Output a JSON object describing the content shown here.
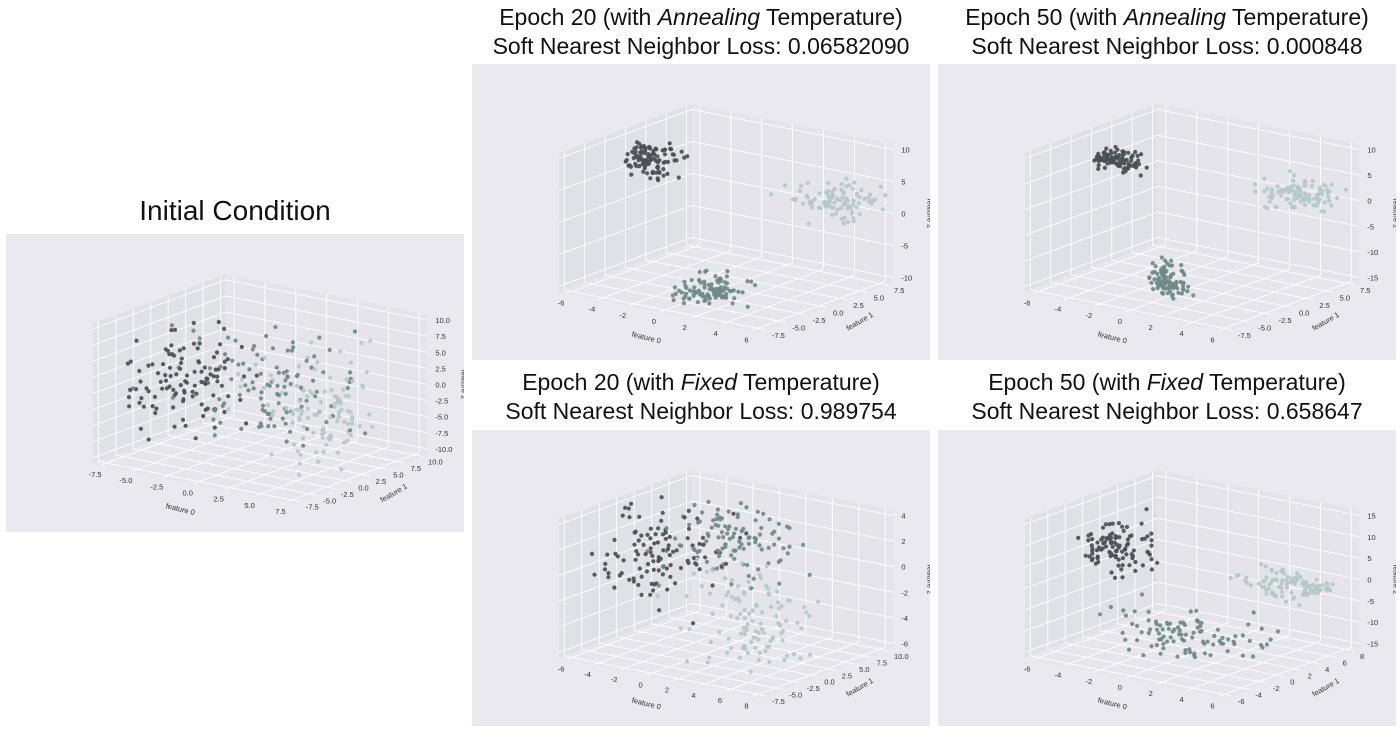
{
  "figure": {
    "initial_title": "Initial Condition",
    "ann20": {
      "title_pre": "Epoch 20 (with ",
      "title_em": "Annealing",
      "title_post": " Temperature)",
      "loss": "Soft Nearest Neighbor Loss: 0.06582090"
    },
    "ann50": {
      "title_pre": "Epoch 50 (with ",
      "title_em": "Annealing",
      "title_post": " Temperature)",
      "loss": "Soft Nearest Neighbor Loss: 0.000848"
    },
    "fix20": {
      "title_pre": "Epoch 20 (with ",
      "title_em": "Fixed",
      "title_post": " Temperature)",
      "loss": "Soft Nearest Neighbor Loss: 0.989754"
    },
    "fix50": {
      "title_pre": "Epoch 50 (with ",
      "title_em": "Fixed",
      "title_post": " Temperature)",
      "loss": "Soft Nearest Neighbor Loss: 0.658647"
    }
  },
  "colors": {
    "background": "#e9e9ef",
    "grid": "#ffffff",
    "cluster_dark": "#4a4f52",
    "cluster_mid": "#6f8a88",
    "cluster_light": "#b4c9c6"
  },
  "chart_data": [
    {
      "id": "initial",
      "type": "scatter",
      "subtype": "3d",
      "grid": true,
      "xlabel": "feature 0",
      "ylabel": "feature 1",
      "zlabel": "feature 2",
      "xticks": [
        "-7.5",
        "-5.0",
        "-2.5",
        "0.0",
        "2.5",
        "5.0",
        "7.5"
      ],
      "yticks": [
        "-7.5",
        "-5.0",
        "-2.5",
        "0.0",
        "2.5",
        "5.0",
        "7.5",
        "10.0"
      ],
      "zticks": [
        "-10.0",
        "-7.5",
        "-5.0",
        "-2.5",
        "0.0",
        "2.5",
        "5.0",
        "7.5",
        "10.0"
      ],
      "clusters": [
        {
          "center": [
            -5.5,
            0.0,
            0.0
          ],
          "spread": [
            2.3,
            3.0,
            4.0
          ],
          "n": 110
        },
        {
          "center": [
            0.0,
            2.5,
            0.0
          ],
          "spread": [
            3.0,
            3.0,
            4.0
          ],
          "n": 110
        },
        {
          "center": [
            5.5,
            0.0,
            0.0
          ],
          "spread": [
            2.3,
            3.0,
            4.0
          ],
          "n": 110
        }
      ]
    },
    {
      "id": "ann20",
      "type": "scatter",
      "subtype": "3d",
      "grid": true,
      "xlabel": "feature 0",
      "ylabel": "feature 1",
      "zlabel": "feature 2",
      "xticks": [
        "-6",
        "-4",
        "-2",
        "0",
        "2",
        "4",
        "6"
      ],
      "yticks": [
        "-7.5",
        "-5.0",
        "-2.5",
        "0.0",
        "2.5",
        "5.0",
        "7.5"
      ],
      "zticks": [
        "-10",
        "-5",
        "0",
        "5",
        "10"
      ],
      "clusters": [
        {
          "center": [
            -5.5,
            1.0,
            6.0
          ],
          "spread": [
            1.0,
            1.0,
            1.2
          ],
          "n": 100
        },
        {
          "center": [
            0.5,
            -3.0,
            -10.0
          ],
          "spread": [
            1.0,
            1.2,
            1.5
          ],
          "n": 100
        },
        {
          "center": [
            4.5,
            5.0,
            2.5
          ],
          "spread": [
            1.2,
            1.5,
            1.2
          ],
          "n": 100
        }
      ]
    },
    {
      "id": "ann50",
      "type": "scatter",
      "subtype": "3d",
      "grid": true,
      "xlabel": "feature 0",
      "ylabel": "feature 1",
      "zlabel": "feature 2",
      "xticks": [
        "-6",
        "-4",
        "-2",
        "0",
        "2",
        "4",
        "6"
      ],
      "yticks": [
        "-7.5",
        "-5.0",
        "-2.5",
        "0.0",
        "2.5",
        "5.0",
        "7.5"
      ],
      "zticks": [
        "-15",
        "-10",
        "-5",
        "0",
        "5",
        "10"
      ],
      "clusters": [
        {
          "center": [
            -5.5,
            1.0,
            5.0
          ],
          "spread": [
            0.8,
            0.6,
            0.8
          ],
          "n": 100
        },
        {
          "center": [
            0.0,
            -3.0,
            -13.0
          ],
          "spread": [
            0.5,
            0.6,
            1.5
          ],
          "n": 100
        },
        {
          "center": [
            4.5,
            5.0,
            2.0
          ],
          "spread": [
            1.2,
            1.4,
            1.0
          ],
          "n": 100
        }
      ]
    },
    {
      "id": "fix20",
      "type": "scatter",
      "subtype": "3d",
      "grid": true,
      "xlabel": "feature 0",
      "ylabel": "feature 1",
      "zlabel": "feature 2",
      "xticks": [
        "-6",
        "-4",
        "-2",
        "0",
        "2",
        "4",
        "6",
        "8"
      ],
      "yticks": [
        "-7.5",
        "-5.0",
        "-2.5",
        "0.0",
        "2.5",
        "5.0",
        "7.5",
        "10.0"
      ],
      "zticks": [
        "-6",
        "-4",
        "-2",
        "0",
        "2",
        "4"
      ],
      "clusters": [
        {
          "center": [
            -3.5,
            0.0,
            0.5
          ],
          "spread": [
            2.5,
            2.0,
            2.0
          ],
          "n": 110
        },
        {
          "center": [
            1.0,
            2.0,
            2.5
          ],
          "spread": [
            2.0,
            2.5,
            1.5
          ],
          "n": 110
        },
        {
          "center": [
            4.5,
            -2.0,
            -2.5
          ],
          "spread": [
            2.0,
            2.0,
            2.0
          ],
          "n": 110
        }
      ]
    },
    {
      "id": "fix50",
      "type": "scatter",
      "subtype": "3d",
      "grid": true,
      "xlabel": "feature 0",
      "ylabel": "feature 1",
      "zlabel": "feature 2",
      "xticks": [
        "-6",
        "-4",
        "-2",
        "0",
        "2",
        "4",
        "6"
      ],
      "yticks": [
        "-6",
        "-4",
        "-2",
        "0",
        "2",
        "4",
        "6",
        "8"
      ],
      "zticks": [
        "-15",
        "-10",
        "-5",
        "0",
        "5",
        "10",
        "15"
      ],
      "clusters": [
        {
          "center": [
            -4.5,
            0.5,
            5.0
          ],
          "spread": [
            1.2,
            1.0,
            3.0
          ],
          "n": 100
        },
        {
          "center": [
            0.5,
            -1.0,
            -10.0
          ],
          "spread": [
            2.5,
            2.0,
            2.5
          ],
          "n": 100
        },
        {
          "center": [
            5.0,
            4.0,
            1.0
          ],
          "spread": [
            1.5,
            1.5,
            1.5
          ],
          "n": 100
        }
      ]
    }
  ]
}
